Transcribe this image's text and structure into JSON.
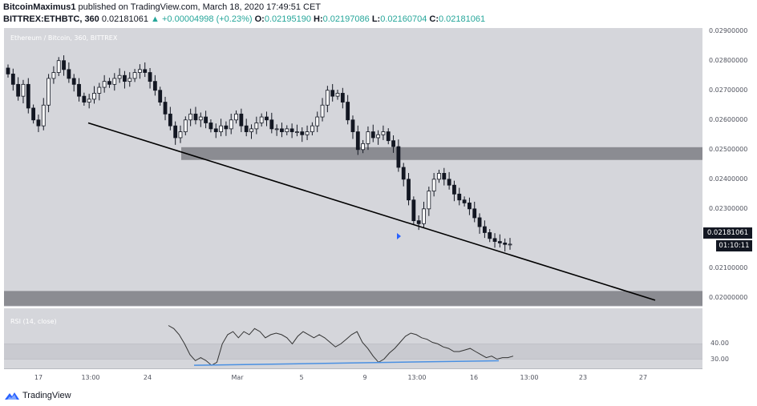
{
  "header": {
    "author": "BitcoinMaximus1",
    "published_text": "published on TradingView.com, March 18, 2020 17:49:51 CET",
    "symbol": "BITTREX:ETHBTC, 360",
    "last": "0.02181061",
    "change": "▲ +0.00004998 (+0.23%)",
    "o_label": "O:",
    "o_value": "0.02195190",
    "h_label": "H:",
    "h_value": "0.02197086",
    "l_label": "L:",
    "l_value": "0.02160704",
    "c_label": "C:",
    "c_value": "0.02181061"
  },
  "chart_title": "Ethereum / Bitcoin, 360, BITTREX",
  "rsi_title": "RSI (14, close)",
  "price_tag": "0.02181061",
  "time_tag": "01:10:11",
  "footer": {
    "brand": "TradingView"
  },
  "colors": {
    "up": "#26a69a",
    "panel": "#d5d6db",
    "zone": "#7e7f85",
    "rsi_line": "#4a90e2"
  },
  "chart_data": {
    "type": "candlestick",
    "title": "Ethereum / Bitcoin, 360, BITTREX",
    "price_ticks": [
      "0.02900000",
      "0.02800000",
      "0.02700000",
      "0.02600000",
      "0.02500000",
      "0.02400000",
      "0.02300000",
      "0.02100000",
      "0.02000000"
    ],
    "rsi_ticks": [
      "40.00",
      "30.00"
    ],
    "time_ticks": [
      "17",
      "13:00",
      "24",
      "Mar",
      "5",
      "9",
      "13:00",
      "16",
      "13:00",
      "23",
      "27"
    ],
    "ylim": [
      0.0197,
      0.0291
    ],
    "zones": [
      [
        0.02465,
        0.02508
      ],
      [
        0.01973,
        0.02023
      ]
    ],
    "trendline": [
      [
        0.0259,
        "Feb 17 13:00"
      ],
      [
        0.01992,
        "Mar 27"
      ]
    ],
    "closes": [
      0.02755,
      0.0272,
      0.0268,
      0.0272,
      0.0264,
      0.026,
      0.0258,
      0.0265,
      0.0274,
      0.0276,
      0.028,
      0.0277,
      0.0274,
      0.0272,
      0.0268,
      0.0266,
      0.0267,
      0.0269,
      0.0271,
      0.0273,
      0.0272,
      0.0274,
      0.0275,
      0.0273,
      0.0274,
      0.0276,
      0.0277,
      0.0276,
      0.0273,
      0.027,
      0.0266,
      0.0262,
      0.0258,
      0.0254,
      0.0256,
      0.026,
      0.0262,
      0.026,
      0.0261,
      0.0259,
      0.0257,
      0.0256,
      0.0258,
      0.0257,
      0.026,
      0.0262,
      0.0258,
      0.0256,
      0.0257,
      0.0259,
      0.0261,
      0.026,
      0.0257,
      0.0257,
      0.0256,
      0.0257,
      0.0256,
      0.0256,
      0.0255,
      0.0256,
      0.0258,
      0.0261,
      0.0265,
      0.027,
      0.0268,
      0.0269,
      0.0266,
      0.026,
      0.0256,
      0.025,
      0.0252,
      0.0256,
      0.0254,
      0.0255,
      0.0256,
      0.0253,
      0.0251,
      0.0244,
      0.024,
      0.0233,
      0.0226,
      0.0225,
      0.023,
      0.0236,
      0.024,
      0.0242,
      0.024,
      0.0238,
      0.0235,
      0.0233,
      0.0232,
      0.023,
      0.0227,
      0.0224,
      0.0222,
      0.022,
      0.0219,
      0.02185,
      0.0218,
      0.02181
    ],
    "rsi": [
      52,
      50,
      46,
      40,
      33,
      29,
      31,
      29,
      26,
      28,
      40,
      46,
      48,
      44,
      48,
      46,
      50,
      48,
      44,
      46,
      47,
      46,
      44,
      40,
      45,
      48,
      46,
      44,
      46,
      44,
      41,
      38,
      40,
      43,
      46,
      48,
      41,
      37,
      32,
      28,
      30,
      34,
      37,
      41,
      45,
      47,
      46,
      44,
      43,
      41,
      40,
      38,
      37,
      35,
      35,
      36,
      37,
      35,
      33,
      31,
      32,
      30,
      31,
      31,
      32
    ],
    "rsi_trendline": [
      [
        26,
        "Feb 27"
      ],
      [
        29,
        "Mar 17"
      ]
    ]
  }
}
